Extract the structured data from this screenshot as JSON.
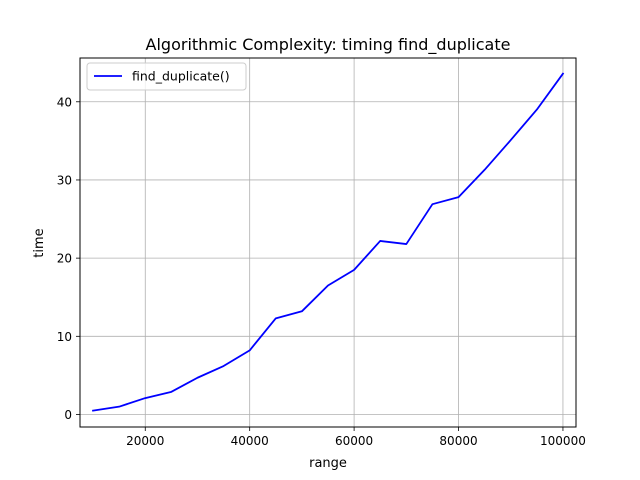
{
  "chart_data": {
    "type": "line",
    "title": "Algorithmic Complexity: timing find_duplicate",
    "xlabel": "range",
    "ylabel": "time",
    "xlim": [
      7500,
      102500
    ],
    "ylim": [
      -1.6,
      45.6
    ],
    "xticks": [
      20000,
      40000,
      60000,
      80000,
      100000
    ],
    "xtick_labels": [
      "20000",
      "40000",
      "60000",
      "80000",
      "100000"
    ],
    "yticks": [
      0,
      10,
      20,
      30,
      40
    ],
    "ytick_labels": [
      "0",
      "10",
      "20",
      "30",
      "40"
    ],
    "grid": true,
    "legend_position": "top-left",
    "series": [
      {
        "name": "find_duplicate()",
        "color": "#0000ff",
        "x": [
          10000,
          15000,
          20000,
          25000,
          30000,
          35000,
          40000,
          45000,
          50000,
          55000,
          60000,
          65000,
          70000,
          75000,
          80000,
          85000,
          90000,
          95000,
          100000
        ],
        "y": [
          0.5,
          1.0,
          2.1,
          2.9,
          4.7,
          6.2,
          8.2,
          12.3,
          13.2,
          16.5,
          18.5,
          22.2,
          21.8,
          26.9,
          27.8,
          31.3,
          35.1,
          39.0,
          43.6
        ]
      }
    ]
  }
}
